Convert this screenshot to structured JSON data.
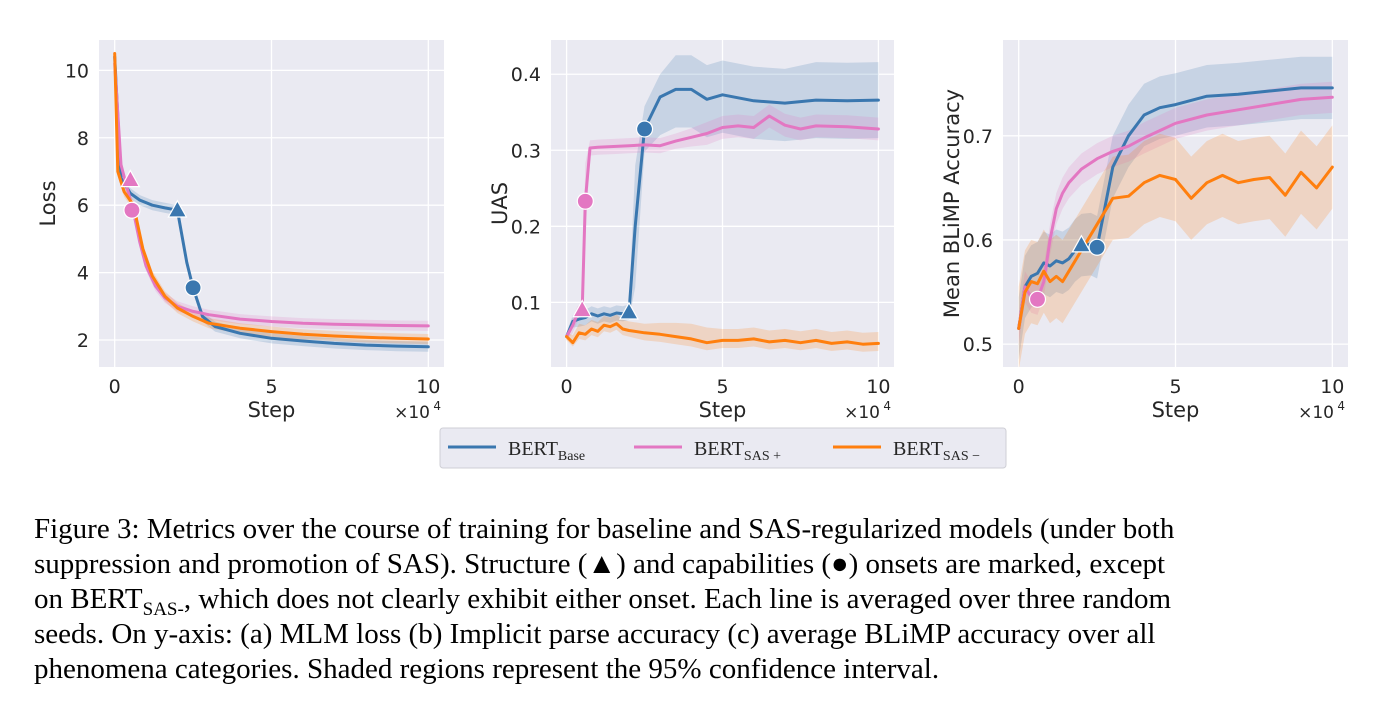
{
  "legend": [
    {
      "label": "BERT",
      "sub": "Base",
      "color": "#3a77af"
    },
    {
      "label": "BERT",
      "sub": "SAS +",
      "color": "#e377c2"
    },
    {
      "label": "BERT",
      "sub": "SAS −",
      "color": "#ff7f0e"
    }
  ],
  "caption": {
    "line1": "Figure 3: Metrics over the course of training for baseline and SAS-regularized models (under both",
    "line2": "suppression and promotion of SAS). Structure (▲) and capabilities (●) onsets are marked, except",
    "line3_pre": "on BERT",
    "line3_sub": "SAS-",
    "line3_post": ", which does not clearly exhibit either onset. Each line is averaged over three random",
    "line4": "seeds. On y-axis: (a) MLM loss (b) Implicit parse accuracy (c) average BLiMP accuracy over all",
    "line5": "phenomena categories. Shaded regions represent the 95% confidence interval."
  },
  "chart_data": [
    {
      "type": "line",
      "ylabel": "Loss",
      "xlabel": "Step",
      "x_multiplier": "×10",
      "x_multiplier_exp": "4",
      "xlim": [
        -0.5,
        10.5
      ],
      "ylim": [
        1.2,
        10.9
      ],
      "xticks": [
        0,
        5,
        10
      ],
      "yticks": [
        2,
        4,
        6,
        8,
        10
      ],
      "grid": true,
      "series": [
        {
          "name": "BERTBase",
          "color": "#3a77af",
          "x": [
            0,
            0.2,
            0.5,
            0.8,
            1.2,
            1.6,
            2.0,
            2.3,
            2.5,
            2.8,
            3.2,
            4,
            5,
            6,
            7,
            8,
            9,
            10
          ],
          "y": [
            10.4,
            6.8,
            6.35,
            6.15,
            6.0,
            5.92,
            5.85,
            4.3,
            3.55,
            2.7,
            2.4,
            2.2,
            2.05,
            1.97,
            1.9,
            1.85,
            1.82,
            1.8
          ],
          "band": 0.15,
          "onsets": {
            "structure": [
              2.0,
              5.85
            ],
            "capabilities": [
              2.5,
              3.55
            ]
          }
        },
        {
          "name": "BERTSAS+",
          "color": "#e377c2",
          "x": [
            0,
            0.2,
            0.4,
            0.6,
            0.8,
            1.0,
            1.3,
            1.6,
            2,
            2.5,
            3,
            4,
            5,
            6,
            7,
            8,
            9,
            10
          ],
          "y": [
            10.2,
            7.2,
            6.5,
            5.8,
            4.9,
            4.2,
            3.6,
            3.25,
            3.0,
            2.85,
            2.75,
            2.62,
            2.55,
            2.5,
            2.47,
            2.45,
            2.43,
            2.42
          ],
          "band": 0.15,
          "onsets": {
            "structure": [
              0.5,
              6.75
            ],
            "capabilities": [
              0.55,
              5.85
            ]
          }
        },
        {
          "name": "BERTSAS-",
          "color": "#ff7f0e",
          "x": [
            0,
            0.1,
            0.3,
            0.6,
            0.9,
            1.2,
            1.6,
            2,
            2.5,
            3,
            4,
            5,
            6,
            7,
            8,
            9,
            10
          ],
          "y": [
            10.5,
            7.0,
            6.4,
            6.0,
            4.7,
            3.9,
            3.3,
            2.95,
            2.7,
            2.5,
            2.35,
            2.25,
            2.17,
            2.12,
            2.08,
            2.05,
            2.03
          ],
          "band": 0.15,
          "onsets": null
        }
      ]
    },
    {
      "type": "line",
      "ylabel": "UAS",
      "xlabel": "Step",
      "x_multiplier": "×10",
      "x_multiplier_exp": "4",
      "xlim": [
        -0.5,
        10.5
      ],
      "ylim": [
        0.015,
        0.445
      ],
      "xticks": [
        0,
        5,
        10
      ],
      "yticks": [
        0.1,
        0.2,
        0.3,
        0.4
      ],
      "grid": true,
      "series": [
        {
          "name": "BERTBase",
          "color": "#3a77af",
          "x": [
            0,
            0.2,
            0.4,
            0.6,
            0.8,
            1.0,
            1.2,
            1.4,
            1.6,
            1.8,
            2.0,
            2.2,
            2.5,
            3.0,
            3.5,
            4.0,
            4.5,
            5.0,
            6.0,
            7.0,
            8.0,
            9.0,
            10.0
          ],
          "y": [
            0.055,
            0.075,
            0.078,
            0.08,
            0.085,
            0.082,
            0.085,
            0.083,
            0.086,
            0.085,
            0.087,
            0.2,
            0.328,
            0.37,
            0.38,
            0.38,
            0.367,
            0.373,
            0.365,
            0.362,
            0.366,
            0.365,
            0.366
          ],
          "band_lo": [
            0.005,
            0.008,
            0.01,
            0.01,
            0.01,
            0.01,
            0.01,
            0.01,
            0.01,
            0.01,
            0.01,
            0.08,
            0.03,
            0.05,
            0.05,
            0.05,
            0.05,
            0.05,
            0.05,
            0.05,
            0.05,
            0.05,
            0.05
          ],
          "band_hi": [
            0.005,
            0.008,
            0.01,
            0.01,
            0.01,
            0.01,
            0.01,
            0.01,
            0.01,
            0.01,
            0.01,
            0.08,
            0.03,
            0.03,
            0.045,
            0.045,
            0.045,
            0.045,
            0.045,
            0.045,
            0.05,
            0.05,
            0.05
          ],
          "onsets": {
            "structure": [
              2.0,
              0.087
            ],
            "capabilities": [
              2.5,
              0.328
            ]
          }
        },
        {
          "name": "BERTSAS+",
          "color": "#e377c2",
          "x": [
            0,
            0.2,
            0.35,
            0.5,
            0.6,
            0.75,
            1.0,
            1.5,
            2.0,
            2.5,
            3.0,
            3.5,
            4.0,
            4.5,
            5.0,
            5.5,
            6.0,
            6.5,
            7.0,
            7.5,
            8.0,
            9.0,
            10.0
          ],
          "y": [
            0.055,
            0.07,
            0.085,
            0.09,
            0.233,
            0.303,
            0.304,
            0.305,
            0.306,
            0.307,
            0.306,
            0.312,
            0.317,
            0.322,
            0.33,
            0.332,
            0.33,
            0.345,
            0.333,
            0.328,
            0.332,
            0.331,
            0.328
          ],
          "band_lo": [
            0.005,
            0.01,
            0.01,
            0.01,
            0.05,
            0.01,
            0.01,
            0.01,
            0.01,
            0.01,
            0.01,
            0.01,
            0.012,
            0.015,
            0.015,
            0.015,
            0.015,
            0.015,
            0.015,
            0.015,
            0.015,
            0.015,
            0.015
          ],
          "band_hi": [
            0.005,
            0.01,
            0.01,
            0.01,
            0.05,
            0.01,
            0.01,
            0.01,
            0.01,
            0.01,
            0.01,
            0.01,
            0.012,
            0.015,
            0.015,
            0.015,
            0.015,
            0.015,
            0.015,
            0.015,
            0.015,
            0.015,
            0.015
          ],
          "onsets": {
            "structure": [
              0.5,
              0.09
            ],
            "capabilities": [
              0.6,
              0.233
            ]
          }
        },
        {
          "name": "BERTSAS-",
          "color": "#ff7f0e",
          "x": [
            0,
            0.2,
            0.4,
            0.6,
            0.8,
            1.0,
            1.2,
            1.4,
            1.6,
            1.8,
            2.0,
            2.5,
            3.0,
            3.5,
            4.0,
            4.5,
            5.0,
            5.5,
            6.0,
            6.5,
            7.0,
            7.5,
            8.0,
            8.5,
            9.0,
            9.5,
            10.0
          ],
          "y": [
            0.055,
            0.047,
            0.06,
            0.058,
            0.065,
            0.062,
            0.07,
            0.068,
            0.072,
            0.065,
            0.063,
            0.06,
            0.058,
            0.055,
            0.052,
            0.047,
            0.05,
            0.05,
            0.052,
            0.048,
            0.05,
            0.047,
            0.05,
            0.046,
            0.048,
            0.045,
            0.046
          ],
          "band_lo": [
            0.005,
            0.005,
            0.008,
            0.008,
            0.008,
            0.008,
            0.008,
            0.008,
            0.008,
            0.008,
            0.008,
            0.01,
            0.01,
            0.01,
            0.01,
            0.01,
            0.01,
            0.01,
            0.01,
            0.01,
            0.01,
            0.01,
            0.01,
            0.01,
            0.01,
            0.01,
            0.01
          ],
          "band_hi": [
            0.005,
            0.01,
            0.012,
            0.012,
            0.012,
            0.012,
            0.012,
            0.012,
            0.012,
            0.012,
            0.012,
            0.012,
            0.015,
            0.018,
            0.02,
            0.02,
            0.015,
            0.015,
            0.015,
            0.015,
            0.015,
            0.015,
            0.015,
            0.015,
            0.015,
            0.015,
            0.015
          ],
          "onsets": null
        }
      ]
    },
    {
      "type": "line",
      "ylabel": "Mean BLiMP Accuracy",
      "xlabel": "Step",
      "x_multiplier": "×10",
      "x_multiplier_exp": "4",
      "xlim": [
        -0.5,
        10.5
      ],
      "ylim": [
        0.478,
        0.792
      ],
      "xticks": [
        0,
        5,
        10
      ],
      "yticks": [
        0.5,
        0.6,
        0.7
      ],
      "grid": true,
      "series": [
        {
          "name": "BERTBase",
          "color": "#3a77af",
          "x": [
            0,
            0.2,
            0.4,
            0.6,
            0.8,
            1.0,
            1.2,
            1.4,
            1.6,
            1.8,
            2.0,
            2.3,
            2.5,
            3.0,
            3.5,
            4.0,
            4.5,
            5.0,
            6.0,
            7.0,
            8.0,
            9.0,
            10.0
          ],
          "y": [
            0.515,
            0.555,
            0.565,
            0.568,
            0.578,
            0.575,
            0.58,
            0.578,
            0.582,
            0.59,
            0.595,
            0.596,
            0.593,
            0.67,
            0.7,
            0.72,
            0.727,
            0.73,
            0.738,
            0.74,
            0.743,
            0.746,
            0.746
          ],
          "band": 0.03,
          "onsets": {
            "structure": [
              2.0,
              0.595
            ],
            "capabilities": [
              2.5,
              0.593
            ]
          }
        },
        {
          "name": "BERTSAS+",
          "color": "#e377c2",
          "x": [
            0,
            0.2,
            0.4,
            0.6,
            0.8,
            1.0,
            1.2,
            1.4,
            1.6,
            2.0,
            2.5,
            3.0,
            3.5,
            4.0,
            4.5,
            5.0,
            6.0,
            7.0,
            8.0,
            9.0,
            10.0
          ],
          "y": [
            0.515,
            0.555,
            0.545,
            0.543,
            0.56,
            0.6,
            0.63,
            0.645,
            0.655,
            0.668,
            0.678,
            0.685,
            0.69,
            0.698,
            0.705,
            0.712,
            0.72,
            0.725,
            0.73,
            0.735,
            0.737
          ],
          "band": 0.015,
          "onsets": {
            "structure": null,
            "capabilities": [
              0.6,
              0.543
            ]
          }
        },
        {
          "name": "BERTSAS-",
          "color": "#ff7f0e",
          "x": [
            0,
            0.2,
            0.4,
            0.6,
            0.8,
            1.0,
            1.2,
            1.4,
            1.6,
            2.0,
            2.5,
            3.0,
            3.5,
            4.0,
            4.5,
            5.0,
            5.5,
            6.0,
            6.5,
            7.0,
            7.5,
            8.0,
            8.5,
            9.0,
            9.5,
            10.0
          ],
          "y": [
            0.515,
            0.55,
            0.56,
            0.558,
            0.57,
            0.56,
            0.565,
            0.56,
            0.57,
            0.59,
            0.615,
            0.64,
            0.642,
            0.655,
            0.662,
            0.658,
            0.64,
            0.655,
            0.662,
            0.655,
            0.658,
            0.66,
            0.643,
            0.665,
            0.65,
            0.67
          ],
          "band": 0.04,
          "onsets": null
        }
      ]
    }
  ]
}
